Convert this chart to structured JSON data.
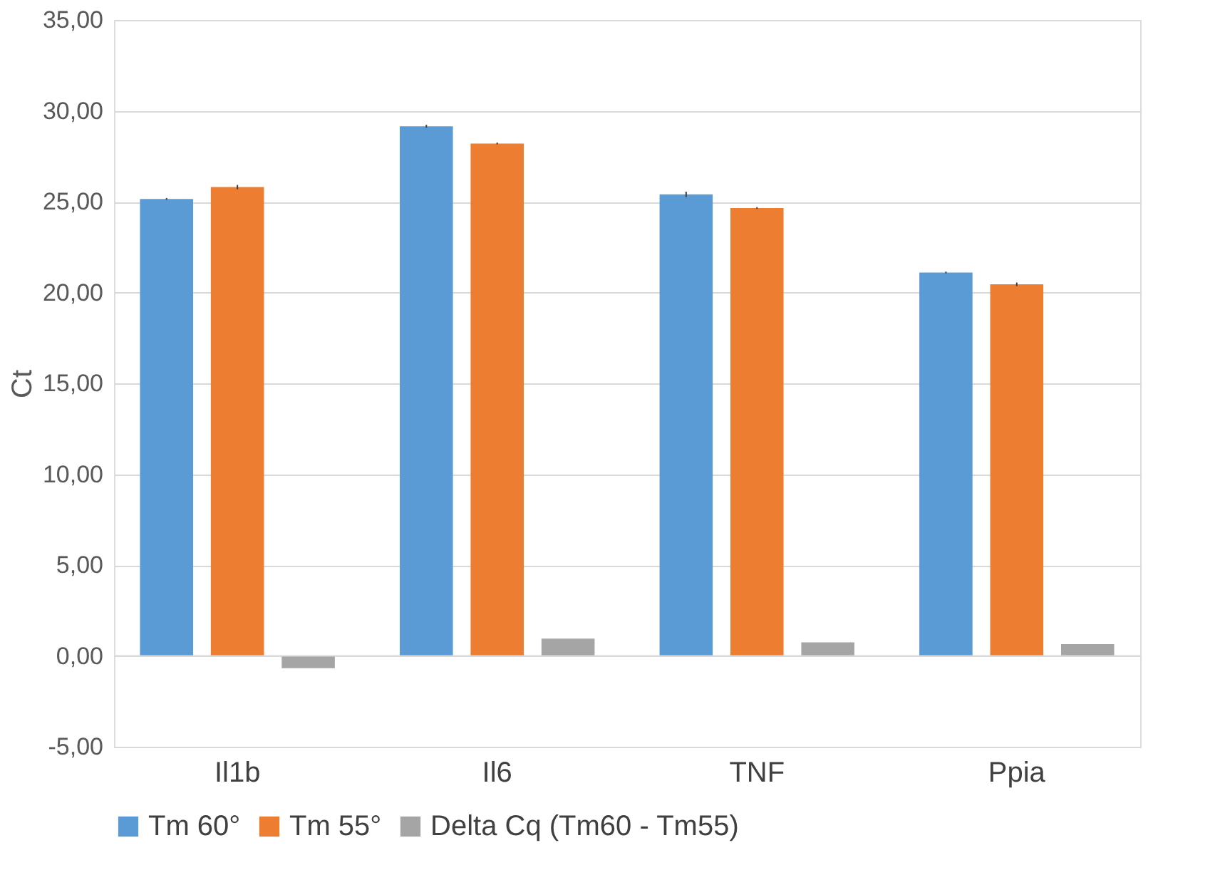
{
  "chart_data": {
    "type": "bar",
    "ylabel": "Ct",
    "categories": [
      "Il1b",
      "Il6",
      "TNF",
      "Ppia"
    ],
    "series": [
      {
        "name": "Tm 60°",
        "color": "#5b9bd5",
        "values": [
          25.15,
          29.15,
          25.4,
          21.1
        ],
        "errors": [
          0.05,
          0.08,
          0.15,
          0.05
        ]
      },
      {
        "name": "Tm 55°",
        "color": "#ed7d31",
        "values": [
          25.8,
          28.2,
          24.65,
          20.45
        ],
        "errors": [
          0.12,
          0.05,
          0.05,
          0.1
        ]
      },
      {
        "name": "Delta Cq (Tm60 - Tm55)",
        "color": "#a5a5a5",
        "values": [
          -0.68,
          0.95,
          0.75,
          0.65
        ]
      }
    ],
    "ylim": [
      -5,
      35
    ],
    "yticks": [
      {
        "value": -5,
        "label": "-5,00"
      },
      {
        "value": 0,
        "label": "0,00"
      },
      {
        "value": 5,
        "label": "5,00"
      },
      {
        "value": 10,
        "label": "10,00"
      },
      {
        "value": 15,
        "label": "15,00"
      },
      {
        "value": 20,
        "label": "20,00"
      },
      {
        "value": 25,
        "label": "25,00"
      },
      {
        "value": 30,
        "label": "30,00"
      },
      {
        "value": 35,
        "label": "35,00"
      }
    ],
    "grid": "y",
    "legend": "bottom"
  }
}
